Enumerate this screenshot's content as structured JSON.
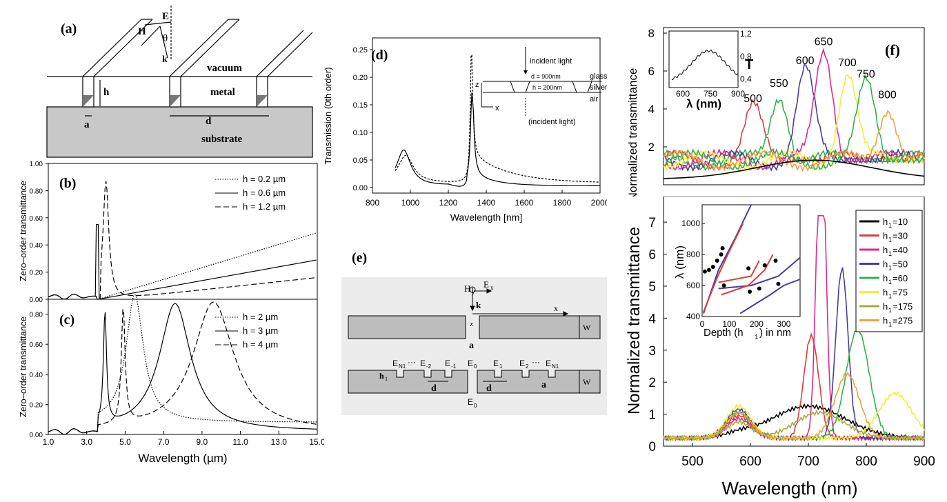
{
  "panel_a": {
    "label": "(a)",
    "vacuum": "vacuum",
    "metal": "metal",
    "substrate": "substrate",
    "h": "h",
    "a": "a",
    "d": "d",
    "E": "E",
    "H": "H",
    "k": "k",
    "theta": "θ"
  },
  "panel_b": {
    "label": "(b)",
    "ylabel": "Zero–order transmittance",
    "yticks": [
      "0.00",
      "0.20",
      "0.40",
      "0.60",
      "0.80",
      "1.00"
    ],
    "legend": [
      "h = 0.2 µm",
      "h = 0.6 µm",
      "h = 1.2 µm"
    ]
  },
  "panel_c": {
    "label": "(c)",
    "ylabel": "Zero–order transmittance",
    "yticks": [
      "0.00",
      "0.20",
      "0.40",
      "0.60",
      "0.80"
    ],
    "xticks": [
      "1.0",
      "3.0",
      "5.0",
      "7.0",
      "9.0",
      "11.0",
      "13.0",
      "15.0"
    ],
    "xlabel": "Wavelength (µm)",
    "legend": [
      "h = 2 µm",
      "h = 3 µm",
      "h = 4 µm"
    ]
  },
  "panel_d": {
    "label": "(d)",
    "ylabel": "Transmission (0th order)",
    "xlabel": "Wavelength [nm]",
    "yticks": [
      "0.00",
      "0.05",
      "0.10",
      "0.15",
      "0.20",
      "0.25"
    ],
    "xticks": [
      "800",
      "1000",
      "1200",
      "1400",
      "1600",
      "1800",
      "2000"
    ],
    "inset": {
      "incident_top": "incident light",
      "incident_bottom": "(incident light)",
      "d_label": "d = 900nm",
      "h_label": "h = 200nm",
      "glass": "glass",
      "silver": "silver",
      "air": "air",
      "z": "z",
      "x": "x"
    }
  },
  "panel_e": {
    "label": "(e)",
    "Hy": "H",
    "Hy_sub": "y",
    "Ex": "E",
    "Ex_sub": "x",
    "k": "k",
    "x": "x",
    "z": "z",
    "W": "W",
    "a": "a",
    "d": "d",
    "h1": "h",
    "h1_sub": "1",
    "E0": "E",
    "E0_sub": "0",
    "E0p": "E",
    "E0p_sub": "0",
    "E_labels": [
      "E",
      "E",
      "E",
      "E",
      "E",
      "E"
    ],
    "E_subs": [
      "N1",
      "-2",
      "-1",
      "1",
      "2",
      "N1"
    ],
    "dots": "···"
  },
  "panel_f": {
    "label": "(f)",
    "ylabel": "Normalized transmittance",
    "yticks": [
      "2",
      "4",
      "6",
      "8"
    ],
    "peak_labels": [
      "500",
      "550",
      "600",
      "650",
      "700",
      "750",
      "800"
    ],
    "inset": {
      "yticks": [
        "0,4",
        "0,8",
        "1,2"
      ],
      "ylabel": "T",
      "xticks": [
        "600",
        "750",
        "900"
      ],
      "xlabel": "λ (nm)"
    }
  },
  "panel_g": {
    "ylabel": "Normalized transmittance",
    "yticks": [
      "0",
      "1",
      "2",
      "3",
      "4",
      "5",
      "6",
      "7"
    ],
    "xticks": [
      "500",
      "600",
      "700",
      "800",
      "900"
    ],
    "xlabel": "Wavelength (nm)",
    "legend": [
      {
        "label": "h",
        "sub": "1",
        "val": "=10",
        "color": "#000000"
      },
      {
        "label": "h",
        "sub": "1",
        "val": "=30",
        "color": "#e03a3a"
      },
      {
        "label": "h",
        "sub": "1",
        "val": "=40",
        "color": "#e0288f"
      },
      {
        "label": "h",
        "sub": "1",
        "val": "=50",
        "color": "#4b3a9c"
      },
      {
        "label": "h",
        "sub": "1",
        "val": "=60",
        "color": "#2db34a"
      },
      {
        "label": "h",
        "sub": "1",
        "val": "=75",
        "color": "#f2ee3a"
      },
      {
        "label": "h",
        "sub": "1",
        "val": "=175",
        "color": "#a8a83a"
      },
      {
        "label": "h",
        "sub": "1",
        "val": "=275",
        "color": "#f0a040"
      }
    ],
    "inset": {
      "yticks": [
        "400",
        "600",
        "800",
        "1000"
      ],
      "xticks": [
        "0",
        "100",
        "200",
        "300"
      ],
      "ylabel": "λ (nm)",
      "xlabel": "Depth (h",
      "xlabel_sub": "1",
      "xlabel_end": ") in nm"
    }
  }
}
